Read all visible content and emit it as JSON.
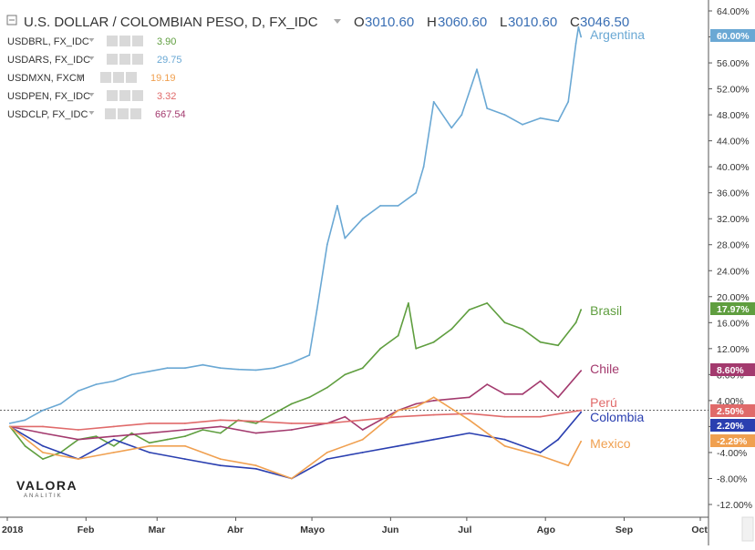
{
  "header": {
    "title": "U.S. DOLLAR / COLOMBIAN PESO, D, FX_IDC",
    "ohlc": [
      {
        "k": "O",
        "v": "3010.60"
      },
      {
        "k": "H",
        "v": "3060.60"
      },
      {
        "k": "L",
        "v": "3010.60"
      },
      {
        "k": "C",
        "v": "3046.50"
      }
    ]
  },
  "legend": [
    {
      "name": "USDBRL, FX_IDC",
      "value": "3.90",
      "color": "#5f9e3f"
    },
    {
      "name": "USDARS, FX_IDC",
      "value": "29.75",
      "color": "#6aa8d4"
    },
    {
      "name": "USDMXN, FXCM",
      "value": "19.19",
      "color": "#f0a050"
    },
    {
      "name": "USDPEN, FX_IDC",
      "value": "3.32",
      "color": "#e06a6a"
    },
    {
      "name": "USDCLP, FX_IDC",
      "value": "667.54",
      "color": "#a33a6e"
    }
  ],
  "watermark": "VALORA ANALITIK",
  "chart_data": {
    "type": "line",
    "yunit": "%",
    "ylim": [
      -13,
      65
    ],
    "yticks": [
      "64.00%",
      "60.00%",
      "56.00%",
      "52.00%",
      "48.00%",
      "44.00%",
      "40.00%",
      "36.00%",
      "32.00%",
      "28.00%",
      "24.00%",
      "20.00%",
      "16.00%",
      "12.00%",
      "8.00%",
      "4.00%",
      "0",
      "-4.00%",
      "-8.00%",
      "-12.00%"
    ],
    "xticks": [
      "2018",
      "Feb",
      "Mar",
      "Abr",
      "Mayo",
      "Jun",
      "Jul",
      "Ago",
      "Sep",
      "Oct"
    ],
    "grid": false,
    "series": [
      {
        "name": "Argentina",
        "color": "#6aa8d4",
        "last": "60.00%",
        "x": [
          "2018-01-02",
          "2018-01-08",
          "2018-01-15",
          "2018-01-22",
          "2018-01-29",
          "2018-02-05",
          "2018-02-12",
          "2018-02-19",
          "2018-02-26",
          "2018-03-05",
          "2018-03-12",
          "2018-03-19",
          "2018-03-26",
          "2018-04-02",
          "2018-04-09",
          "2018-04-16",
          "2018-04-23",
          "2018-04-30",
          "2018-05-03",
          "2018-05-07",
          "2018-05-11",
          "2018-05-14",
          "2018-05-21",
          "2018-05-28",
          "2018-06-04",
          "2018-06-11",
          "2018-06-14",
          "2018-06-18",
          "2018-06-25",
          "2018-06-29",
          "2018-07-05",
          "2018-07-09",
          "2018-07-16",
          "2018-07-23",
          "2018-07-30",
          "2018-08-06",
          "2018-08-10",
          "2018-08-13",
          "2018-08-14",
          "2018-08-15"
        ],
        "y": [
          0.5,
          1.0,
          2.5,
          3.5,
          5.5,
          6.5,
          7.0,
          8.0,
          8.5,
          9.0,
          9.0,
          9.5,
          9.0,
          8.8,
          8.7,
          9.0,
          9.8,
          11.0,
          18.0,
          28.0,
          34.0,
          29.0,
          32.0,
          34.0,
          34.0,
          36.0,
          40.0,
          50.0,
          46.0,
          48.0,
          55.0,
          49.0,
          48.0,
          46.5,
          47.5,
          47.0,
          50.0,
          59.0,
          61.5,
          60.0
        ]
      },
      {
        "name": "Brasil",
        "color": "#5f9e3f",
        "last": "17.97%",
        "x": [
          "2018-01-02",
          "2018-01-08",
          "2018-01-15",
          "2018-01-22",
          "2018-01-29",
          "2018-02-05",
          "2018-02-12",
          "2018-02-19",
          "2018-02-26",
          "2018-03-05",
          "2018-03-12",
          "2018-03-19",
          "2018-03-26",
          "2018-04-02",
          "2018-04-09",
          "2018-04-16",
          "2018-04-23",
          "2018-04-30",
          "2018-05-07",
          "2018-05-14",
          "2018-05-21",
          "2018-05-28",
          "2018-06-04",
          "2018-06-08",
          "2018-06-11",
          "2018-06-18",
          "2018-06-25",
          "2018-07-02",
          "2018-07-09",
          "2018-07-16",
          "2018-07-23",
          "2018-07-30",
          "2018-08-06",
          "2018-08-13",
          "2018-08-15"
        ],
        "y": [
          0.0,
          -3.0,
          -5.0,
          -4.0,
          -2.0,
          -1.5,
          -3.0,
          -1.0,
          -2.5,
          -2.0,
          -1.5,
          -0.5,
          -1.0,
          1.0,
          0.5,
          2.0,
          3.5,
          4.5,
          6.0,
          8.0,
          9.0,
          12.0,
          14.0,
          19.0,
          12.0,
          13.0,
          15.0,
          18.0,
          19.0,
          16.0,
          15.0,
          13.0,
          12.5,
          16.0,
          18.0
        ]
      },
      {
        "name": "Chile",
        "color": "#a33a6e",
        "last": "8.60%",
        "x": [
          "2018-01-02",
          "2018-01-15",
          "2018-01-29",
          "2018-02-12",
          "2018-02-26",
          "2018-03-12",
          "2018-03-26",
          "2018-04-09",
          "2018-04-23",
          "2018-05-07",
          "2018-05-14",
          "2018-05-21",
          "2018-06-04",
          "2018-06-11",
          "2018-06-18",
          "2018-07-02",
          "2018-07-09",
          "2018-07-16",
          "2018-07-23",
          "2018-07-30",
          "2018-08-06",
          "2018-08-15"
        ],
        "y": [
          0.0,
          -1.0,
          -2.0,
          -1.5,
          -1.0,
          -0.5,
          0.0,
          -1.0,
          -0.5,
          0.5,
          1.5,
          -0.5,
          2.5,
          3.5,
          4.0,
          4.5,
          6.5,
          5.0,
          5.0,
          7.0,
          4.5,
          8.6
        ]
      },
      {
        "name": "Perú",
        "color": "#e06a6a",
        "last": "2.50%",
        "x": [
          "2018-01-02",
          "2018-01-15",
          "2018-01-29",
          "2018-02-12",
          "2018-02-26",
          "2018-03-12",
          "2018-03-26",
          "2018-04-09",
          "2018-04-23",
          "2018-05-07",
          "2018-05-21",
          "2018-06-04",
          "2018-06-18",
          "2018-07-02",
          "2018-07-16",
          "2018-07-30",
          "2018-08-15"
        ],
        "y": [
          0.0,
          0.0,
          -0.5,
          0.0,
          0.5,
          0.5,
          1.0,
          0.8,
          0.5,
          0.5,
          1.0,
          1.5,
          1.8,
          2.0,
          1.5,
          1.5,
          2.5
        ]
      },
      {
        "name": "Colombia",
        "color": "#2a3fb0",
        "last": "2.20%",
        "x": [
          "2018-01-02",
          "2018-01-15",
          "2018-01-29",
          "2018-02-12",
          "2018-02-26",
          "2018-03-12",
          "2018-03-26",
          "2018-04-09",
          "2018-04-23",
          "2018-05-07",
          "2018-05-21",
          "2018-06-04",
          "2018-06-18",
          "2018-07-02",
          "2018-07-16",
          "2018-07-30",
          "2018-08-06",
          "2018-08-15"
        ],
        "y": [
          0.0,
          -3.0,
          -5.0,
          -2.0,
          -4.0,
          -5.0,
          -6.0,
          -6.5,
          -8.0,
          -5.0,
          -4.0,
          -3.0,
          -2.0,
          -1.0,
          -2.0,
          -4.0,
          -2.0,
          2.2
        ]
      },
      {
        "name": "Mexico",
        "color": "#f0a050",
        "last": "-2.29%",
        "x": [
          "2018-01-02",
          "2018-01-15",
          "2018-01-29",
          "2018-02-12",
          "2018-02-26",
          "2018-03-12",
          "2018-03-26",
          "2018-04-09",
          "2018-04-23",
          "2018-05-07",
          "2018-05-21",
          "2018-06-04",
          "2018-06-11",
          "2018-06-18",
          "2018-07-02",
          "2018-07-16",
          "2018-07-30",
          "2018-08-10",
          "2018-08-15"
        ],
        "y": [
          0.0,
          -4.0,
          -5.0,
          -4.0,
          -3.0,
          -3.0,
          -5.0,
          -6.0,
          -8.0,
          -4.0,
          -2.0,
          2.5,
          3.0,
          4.5,
          1.0,
          -3.0,
          -4.5,
          -6.0,
          -2.29
        ]
      }
    ]
  }
}
